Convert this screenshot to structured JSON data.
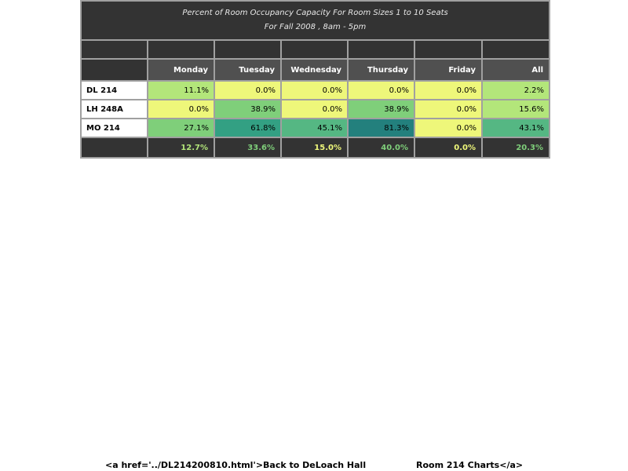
{
  "title": {
    "line1": "Percent of Room Occupancy Capacity For Room Sizes 1 to 10 Seats",
    "line2": "For Fall 2008  , 8am - 5pm"
  },
  "columns": [
    "Monday",
    "Tuesday",
    "Wednesday",
    "Thursday",
    "Friday",
    "All"
  ],
  "rows": [
    {
      "label": "DL 214",
      "values": [
        "11.1%",
        "0.0%",
        "0.0%",
        "0.0%",
        "0.0%",
        "2.2%"
      ],
      "colors": [
        "#b3e67a",
        "#eef77a",
        "#eef77a",
        "#eef77a",
        "#eef77a",
        "#b3e67a"
      ]
    },
    {
      "label": "LH 248A",
      "values": [
        "0.0%",
        "38.9%",
        "0.0%",
        "38.9%",
        "0.0%",
        "15.6%"
      ],
      "colors": [
        "#eef77a",
        "#7fcf7a",
        "#eef77a",
        "#7fcf7a",
        "#eef77a",
        "#b3e67a"
      ]
    },
    {
      "label": "MO 214",
      "values": [
        "27.1%",
        "61.8%",
        "45.1%",
        "81.3%",
        "0.0%",
        "43.1%"
      ],
      "colors": [
        "#7fcf7a",
        "#33a083",
        "#55b783",
        "#23807d",
        "#eef77a",
        "#55b783"
      ]
    }
  ],
  "totals": {
    "values": [
      "12.7%",
      "33.6%",
      "15.0%",
      "40.0%",
      "0.0%",
      "20.3%"
    ],
    "colors": [
      "#b3e67a",
      "#7fcf7a",
      "#eef77a",
      "#7fcf7a",
      "#eef77a",
      "#7fcf7a"
    ]
  },
  "footer": {
    "left_text": "<a href='../DL214200810.html'>Back to DeLoach Hall",
    "right_text": "Room 214 Charts</a>"
  }
}
